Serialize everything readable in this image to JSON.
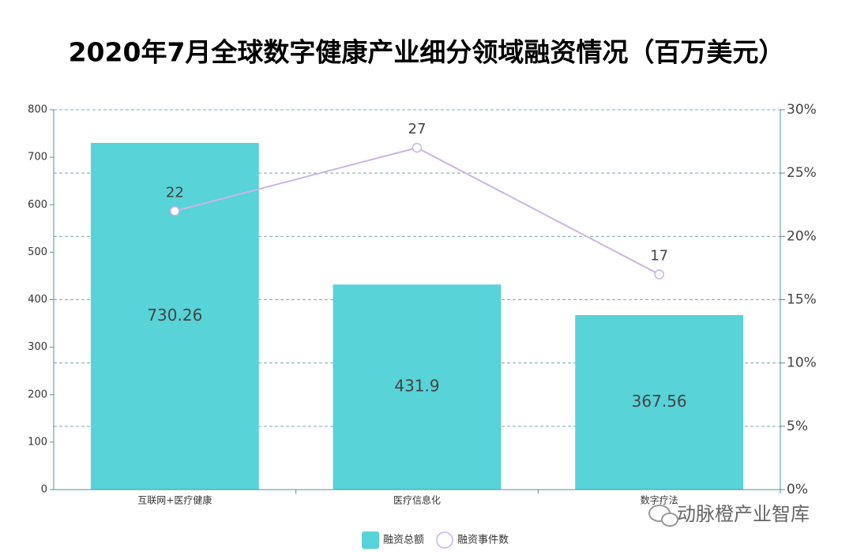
{
  "chart_data": {
    "type": "bar",
    "title": "2020年7月全球数字健康产业细分领域融资情况（百万美元）",
    "categories": [
      "互联网+医疗健康",
      "医疗信息化",
      "数字疗法"
    ],
    "series": [
      {
        "name": "融资总额",
        "type": "bar",
        "color": "#58d3d8",
        "values": [
          730.26,
          431.9,
          367.56
        ]
      },
      {
        "name": "融资事件数",
        "type": "line",
        "axis": "y2",
        "color": "#c9b6e4",
        "values": [
          22,
          27,
          17
        ]
      }
    ],
    "ylim": [
      0,
      800
    ],
    "yticks": [
      0,
      100,
      200,
      300,
      400,
      500,
      600,
      700,
      800
    ],
    "y2lim": [
      0,
      30
    ],
    "y2ticks": [
      {
        "value": 0,
        "label": "0%"
      },
      {
        "value": 5,
        "label": "5%"
      },
      {
        "value": 10,
        "label": "10%"
      },
      {
        "value": 15,
        "label": "15%"
      },
      {
        "value": 20,
        "label": "20%"
      },
      {
        "value": 25,
        "label": "25%"
      },
      {
        "value": 30,
        "label": "30%"
      }
    ],
    "grid": true,
    "watermark": "动脉橙产业智库"
  }
}
